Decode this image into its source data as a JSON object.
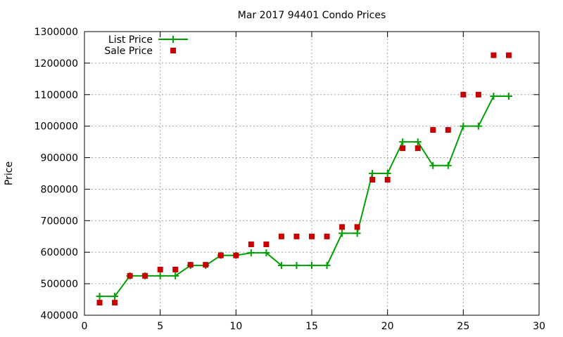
{
  "chart_data": {
    "type": "line",
    "title": "Mar 2017 94401 Condo Prices",
    "xlabel": "",
    "ylabel": "Price",
    "xlim": [
      0,
      30
    ],
    "ylim": [
      400000,
      1300000
    ],
    "xticks": [
      0,
      5,
      10,
      15,
      20,
      25,
      30
    ],
    "yticks": [
      400000,
      500000,
      600000,
      700000,
      800000,
      900000,
      1000000,
      1100000,
      1200000,
      1300000
    ],
    "grid": true,
    "legend_position": "top-left",
    "series": [
      {
        "name": "List Price",
        "style": "line-with-plus-markers",
        "color": "#00a000",
        "x": [
          1,
          2,
          3,
          4,
          5,
          6,
          7,
          8,
          9,
          10,
          11,
          12,
          13,
          14,
          15,
          16,
          17,
          18,
          19,
          20,
          21,
          22,
          23,
          24,
          25,
          26,
          27,
          28
        ],
        "y": [
          460000,
          460000,
          525000,
          525000,
          525000,
          525000,
          558000,
          558000,
          590000,
          590000,
          598000,
          598000,
          558000,
          558000,
          558000,
          558000,
          660000,
          660000,
          850000,
          850000,
          950000,
          950000,
          875000,
          875000,
          1000000,
          1000000,
          1095000,
          1095000
        ]
      },
      {
        "name": "Sale Price",
        "style": "square-markers",
        "color": "#c80000",
        "x": [
          1,
          2,
          3,
          4,
          5,
          6,
          7,
          8,
          9,
          10,
          11,
          12,
          13,
          14,
          15,
          16,
          17,
          18,
          19,
          20,
          21,
          22,
          23,
          24,
          25,
          26,
          27,
          28
        ],
        "y": [
          440000,
          440000,
          525000,
          525000,
          545000,
          545000,
          560000,
          560000,
          590000,
          590000,
          625000,
          625000,
          650000,
          650000,
          650000,
          650000,
          680000,
          680000,
          830000,
          830000,
          930000,
          930000,
          988000,
          988000,
          1100000,
          1100000,
          1225000,
          1225000
        ]
      }
    ]
  }
}
